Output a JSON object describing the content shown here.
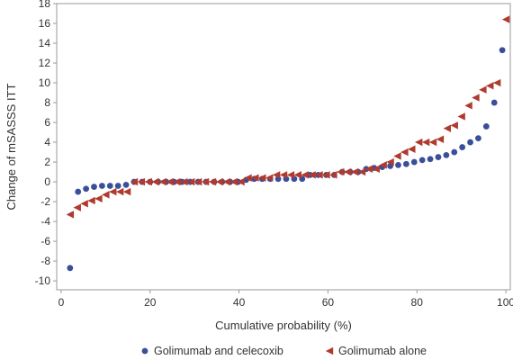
{
  "chart_data": {
    "type": "scatter",
    "xlabel": "Cumulative probability (%)",
    "ylabel": "Change of mSASSS ITT",
    "xlim": [
      -1,
      101
    ],
    "ylim": [
      -10.9,
      18
    ],
    "xticks": [
      0,
      20,
      40,
      60,
      80,
      100
    ],
    "yticks": [
      -10,
      -8,
      -6,
      -4,
      -2,
      0,
      2,
      4,
      6,
      8,
      10,
      12,
      14,
      16,
      18
    ],
    "grid": false,
    "legend_position": "bottom",
    "series": [
      {
        "name": "Golimumab and celecoxib",
        "marker": "circle",
        "color": "#3A4F9A",
        "x": [
          2.0,
          3.8,
          5.6,
          7.4,
          9.2,
          11.0,
          12.8,
          14.6,
          16.4,
          18.2,
          20.0,
          21.8,
          23.6,
          25.4,
          27.2,
          29.0,
          30.8,
          32.6,
          34.4,
          36.2,
          38.0,
          39.8,
          41.6,
          43.4,
          45.2,
          47.0,
          48.8,
          50.6,
          52.4,
          54.2,
          56.0,
          57.8,
          59.6,
          61.4,
          63.2,
          65.0,
          66.8,
          68.6,
          70.4,
          72.2,
          74.0,
          75.8,
          77.6,
          79.4,
          81.2,
          83.0,
          84.8,
          86.6,
          88.4,
          90.2,
          92.0,
          93.8,
          95.6,
          97.4,
          99.2
        ],
        "y": [
          -8.7,
          -1.0,
          -0.7,
          -0.5,
          -0.4,
          -0.4,
          -0.4,
          -0.3,
          0.0,
          0.0,
          0.0,
          0.0,
          0.0,
          0.0,
          0.0,
          0.0,
          0.0,
          0.0,
          0.0,
          0.0,
          0.0,
          0.0,
          0.2,
          0.3,
          0.3,
          0.3,
          0.3,
          0.3,
          0.3,
          0.3,
          0.7,
          0.7,
          0.7,
          0.7,
          1.0,
          1.0,
          1.0,
          1.3,
          1.4,
          1.5,
          1.6,
          1.7,
          1.8,
          2.0,
          2.2,
          2.3,
          2.5,
          2.7,
          3.0,
          3.5,
          4.0,
          4.4,
          5.6,
          8.0,
          13.3
        ]
      },
      {
        "name": "Golimumab alone",
        "marker": "triangle-left",
        "color": "#B03A2E",
        "x": [
          2.0,
          3.6,
          5.2,
          6.8,
          8.4,
          10.0,
          11.6,
          13.2,
          14.8,
          16.4,
          18.0,
          19.6,
          21.2,
          22.8,
          24.4,
          26.0,
          27.6,
          29.2,
          30.8,
          32.4,
          34.0,
          35.6,
          37.2,
          38.8,
          40.4,
          42.0,
          43.6,
          45.2,
          46.8,
          48.4,
          50.0,
          51.6,
          53.2,
          54.8,
          56.4,
          58.0,
          59.6,
          61.2,
          62.8,
          64.4,
          66.0,
          67.6,
          69.2,
          70.8,
          72.4,
          74.0,
          75.6,
          77.2,
          78.8,
          80.4,
          82.0,
          83.6,
          85.2,
          86.8,
          88.4,
          90.0,
          91.6,
          93.2,
          94.8,
          96.4,
          98.0,
          100.0
        ],
        "y": [
          -3.3,
          -2.6,
          -2.2,
          -1.9,
          -1.7,
          -1.3,
          -1.0,
          -1.0,
          -1.0,
          0.0,
          0.0,
          0.0,
          0.0,
          0.0,
          0.0,
          0.0,
          0.0,
          0.0,
          0.0,
          0.0,
          0.0,
          0.0,
          0.0,
          0.0,
          0.0,
          0.4,
          0.4,
          0.4,
          0.4,
          0.7,
          0.7,
          0.7,
          0.7,
          0.7,
          0.7,
          0.7,
          0.7,
          0.7,
          1.0,
          1.0,
          1.0,
          1.0,
          1.3,
          1.3,
          1.7,
          2.0,
          2.6,
          3.0,
          3.3,
          4.0,
          4.0,
          4.0,
          4.3,
          5.4,
          5.7,
          6.6,
          7.7,
          8.5,
          9.3,
          9.7,
          10.0,
          16.4
        ]
      }
    ]
  }
}
